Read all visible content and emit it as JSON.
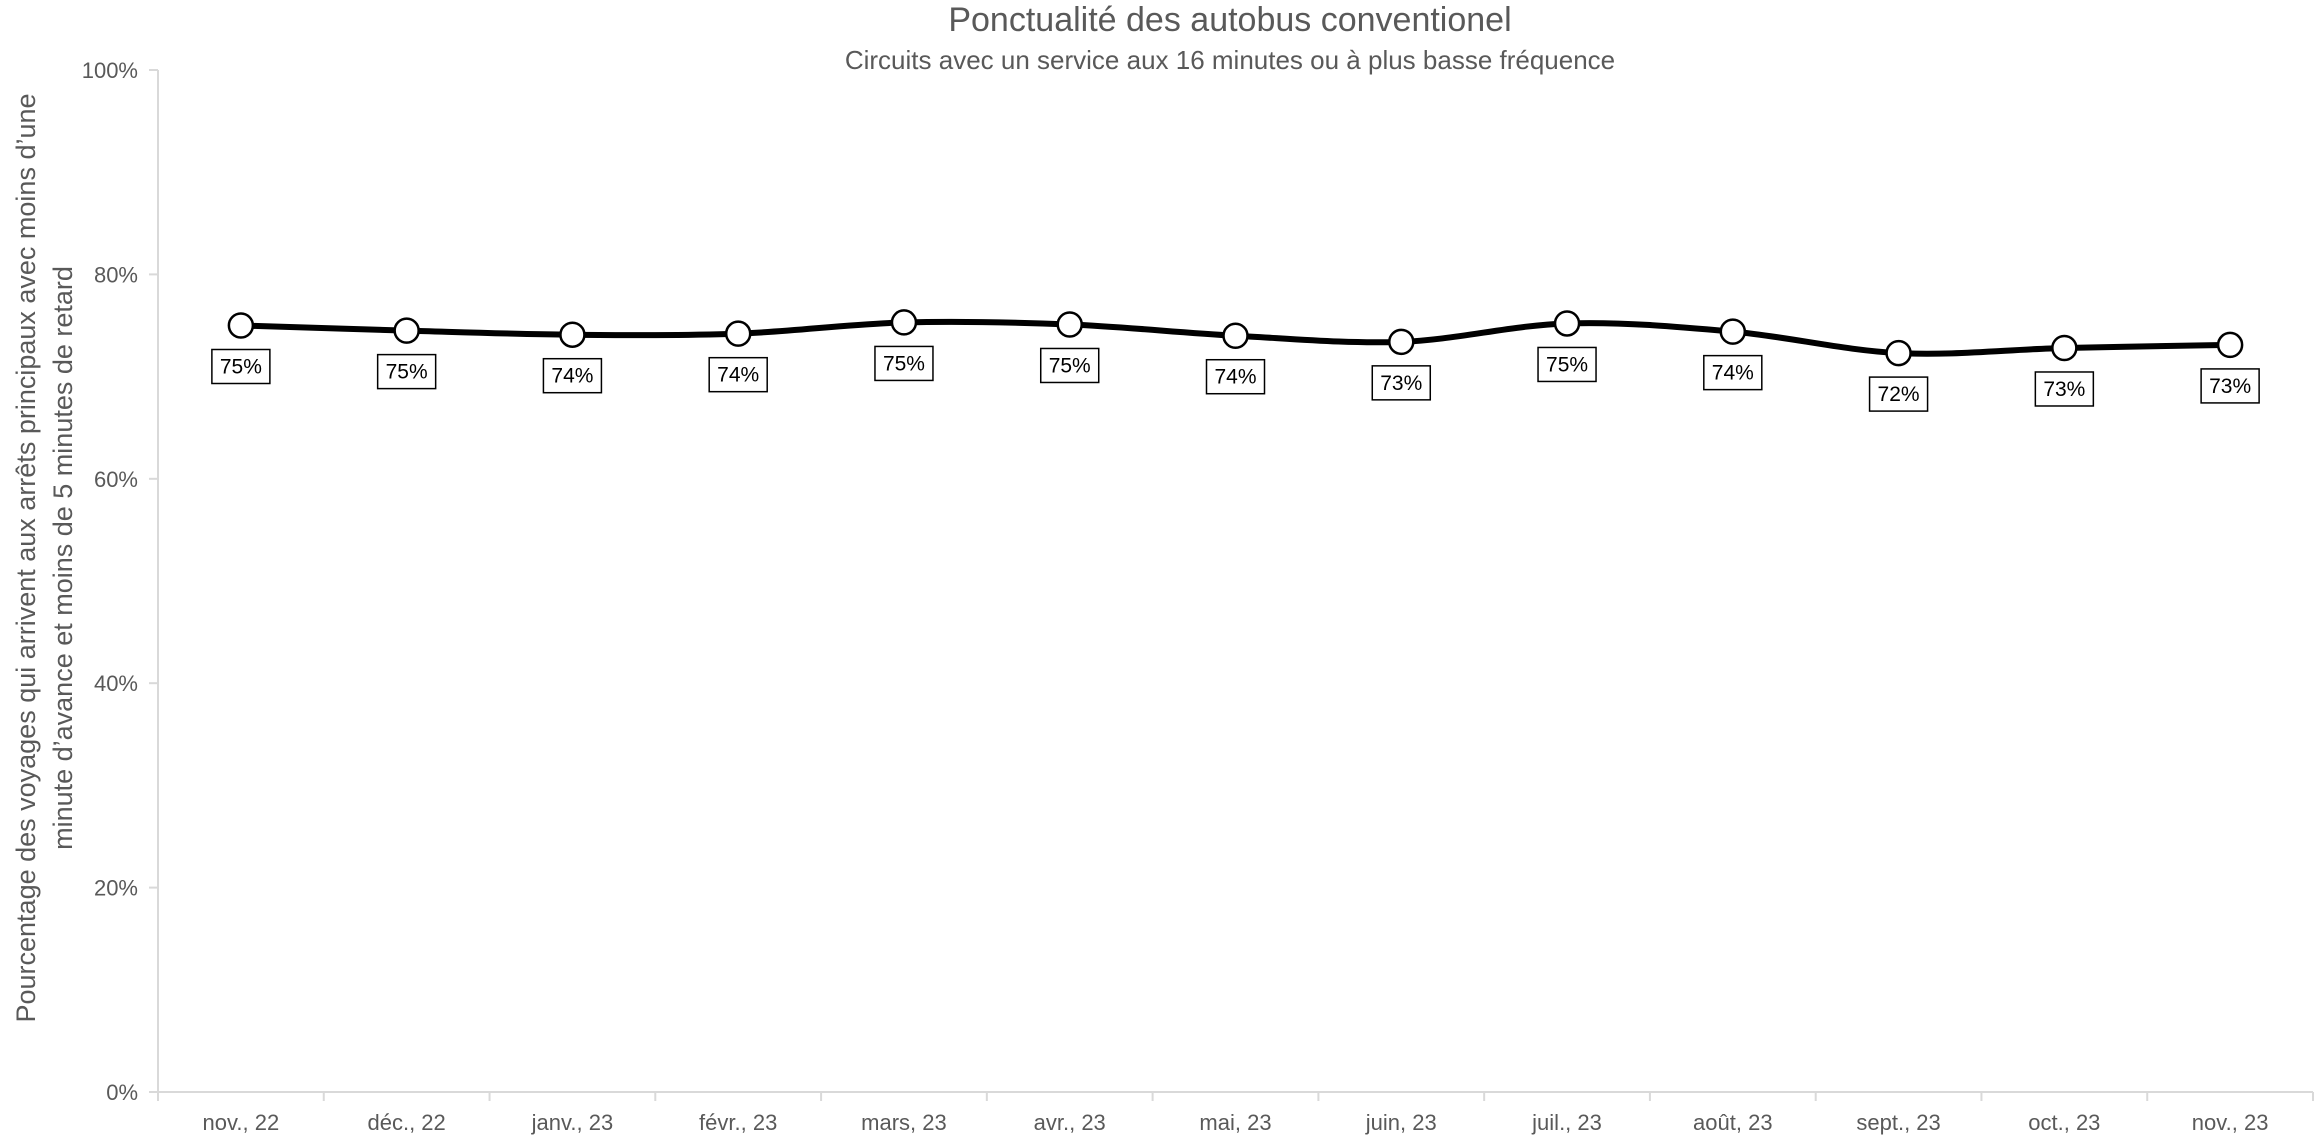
{
  "chart_data": {
    "type": "line",
    "title": "Ponctualité des autobus conventionel",
    "subtitle": "Circuits avec un service aux 16 minutes ou à plus basse fréquence",
    "ylabel_lines": [
      "Pourcentage des voyages qui arrivent aux arrêts principaux avec moins d’une",
      "minute d’avance et moins de 5 minutes de retard"
    ],
    "xlabel": "",
    "ylim": [
      0,
      100
    ],
    "yticks": [
      "0%",
      "20%",
      "40%",
      "60%",
      "80%",
      "100%"
    ],
    "yticks_values": [
      0,
      20,
      40,
      60,
      80,
      100
    ],
    "grid": false,
    "smooth": true,
    "colors": {
      "line": "#000000",
      "marker_fill": "#ffffff",
      "axis": "#d9d9d9",
      "text": "#595959"
    },
    "categories": [
      "nov., 22",
      "déc., 22",
      "janv., 23",
      "févr., 23",
      "mars, 23",
      "avr., 23",
      "mai, 23",
      "juin, 23",
      "juil., 23",
      "août, 23",
      "sept., 23",
      "oct., 23",
      "nov., 23"
    ],
    "series": [
      {
        "values": [
          75.0,
          74.5,
          74.1,
          74.2,
          75.3,
          75.1,
          74.0,
          73.4,
          75.2,
          74.4,
          72.3,
          72.8,
          73.1
        ],
        "labels": [
          "75%",
          "75%",
          "74%",
          "74%",
          "75%",
          "75%",
          "74%",
          "73%",
          "75%",
          "74%",
          "72%",
          "73%",
          "73%"
        ]
      }
    ]
  }
}
